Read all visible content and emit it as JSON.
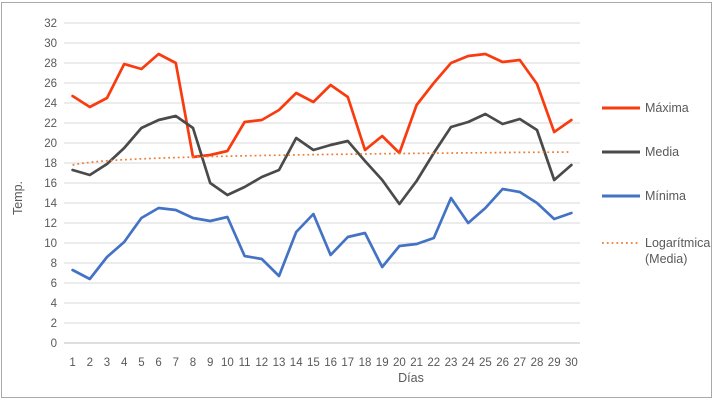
{
  "chart_data": {
    "type": "line",
    "title": "",
    "xlabel": "Días",
    "ylabel": "Temp.",
    "ylim": [
      0,
      32
    ],
    "y_tick_step": 2,
    "y_ticks": [
      0,
      2,
      4,
      6,
      8,
      10,
      12,
      14,
      16,
      18,
      20,
      22,
      24,
      26,
      28,
      30,
      32
    ],
    "x": [
      1,
      2,
      3,
      4,
      5,
      6,
      7,
      8,
      9,
      10,
      11,
      12,
      13,
      14,
      15,
      16,
      17,
      18,
      19,
      20,
      21,
      22,
      23,
      24,
      25,
      26,
      27,
      28,
      29,
      30
    ],
    "grid": "horizontal",
    "legend_position": "right",
    "series": [
      {
        "name": "Máxima",
        "color": "#f93b10",
        "style": "solid",
        "values": [
          24.7,
          23.6,
          24.5,
          27.9,
          27.4,
          28.9,
          28.0,
          18.6,
          18.8,
          19.2,
          22.1,
          22.3,
          23.3,
          25.0,
          24.1,
          25.8,
          24.6,
          19.3,
          20.7,
          19.0,
          23.8,
          26.0,
          28.0,
          28.7,
          28.9,
          28.1,
          28.3,
          25.9,
          21.1,
          22.3
        ]
      },
      {
        "name": "Media",
        "color": "#4a4a4a",
        "style": "solid",
        "values": [
          17.3,
          16.8,
          17.9,
          19.5,
          21.5,
          22.3,
          22.7,
          21.5,
          16.0,
          14.8,
          15.6,
          16.6,
          17.3,
          20.5,
          19.3,
          19.8,
          20.2,
          18.2,
          16.3,
          13.9,
          16.2,
          19.0,
          21.6,
          22.1,
          22.9,
          21.9,
          22.4,
          21.3,
          16.3,
          17.8
        ]
      },
      {
        "name": "Mínima",
        "color": "#4472c4",
        "style": "solid",
        "values": [
          7.3,
          6.4,
          8.6,
          10.1,
          12.5,
          13.5,
          13.3,
          12.5,
          12.2,
          12.6,
          8.7,
          8.4,
          6.7,
          11.1,
          12.9,
          8.8,
          10.6,
          11.0,
          7.6,
          9.7,
          9.9,
          10.5,
          14.5,
          12.0,
          13.5,
          15.4,
          15.1,
          14.0,
          12.4,
          13.0
        ]
      },
      {
        "name": "Logarítmica (Media)",
        "color": "#ed7d31",
        "style": "dotted",
        "trend": {
          "shape": "log",
          "start": 17.8,
          "end": 19.1
        }
      }
    ],
    "legend": [
      {
        "label": "Máxima",
        "lines": [
          "Máxima"
        ],
        "color": "#f93b10",
        "style": "solid"
      },
      {
        "label": "Media",
        "lines": [
          "Media"
        ],
        "color": "#4a4a4a",
        "style": "solid"
      },
      {
        "label": "Mínima",
        "lines": [
          "Mínima"
        ],
        "color": "#4472c4",
        "style": "solid"
      },
      {
        "label": "Logarítmica (Media)",
        "lines": [
          "Logarítmica",
          "(Media)"
        ],
        "color": "#ed7d31",
        "style": "dotted"
      }
    ],
    "colors": {
      "gridline": "#d9d9d9",
      "axis_line": "#bfbfbf",
      "tick_text": "#595959"
    }
  }
}
